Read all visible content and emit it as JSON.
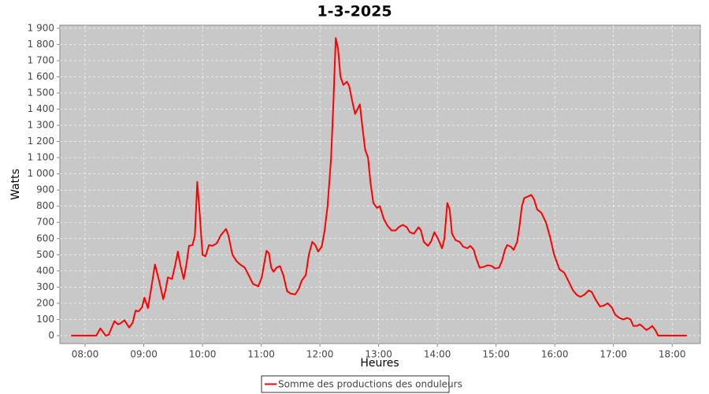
{
  "chart_data": {
    "type": "line",
    "title": "1-3-2025",
    "x_label": "Heures",
    "y_label": "Watts",
    "x": [
      7.76,
      8.13,
      8.19,
      8.26,
      8.35,
      8.4,
      8.5,
      8.56,
      8.6,
      8.67,
      8.75,
      8.81,
      8.86,
      8.91,
      8.97,
      9.01,
      9.07,
      9.13,
      9.19,
      9.26,
      9.33,
      9.37,
      9.41,
      9.48,
      9.53,
      9.58,
      9.62,
      9.68,
      9.73,
      9.77,
      9.83,
      9.87,
      9.91,
      9.95,
      10.0,
      10.05,
      10.11,
      10.17,
      10.24,
      10.31,
      10.4,
      10.44,
      10.51,
      10.58,
      10.64,
      10.72,
      10.79,
      10.86,
      10.95,
      11.01,
      11.09,
      11.13,
      11.17,
      11.21,
      11.26,
      11.32,
      11.38,
      11.44,
      11.5,
      11.58,
      11.64,
      11.69,
      11.76,
      11.81,
      11.87,
      11.92,
      11.97,
      12.03,
      12.08,
      12.13,
      12.19,
      12.23,
      12.27,
      12.31,
      12.35,
      12.4,
      12.46,
      12.5,
      12.55,
      12.6,
      12.64,
      12.68,
      12.72,
      12.77,
      12.82,
      12.86,
      12.91,
      12.97,
      13.02,
      13.09,
      13.15,
      13.22,
      13.29,
      13.34,
      13.41,
      13.48,
      13.53,
      13.6,
      13.68,
      13.72,
      13.77,
      13.84,
      13.89,
      13.95,
      14.01,
      14.08,
      14.12,
      14.17,
      14.21,
      14.25,
      14.31,
      14.38,
      14.44,
      14.51,
      14.56,
      14.62,
      14.66,
      14.72,
      14.79,
      14.86,
      14.93,
      14.98,
      15.05,
      15.1,
      15.15,
      15.19,
      15.25,
      15.3,
      15.36,
      15.4,
      15.44,
      15.48,
      15.54,
      15.6,
      15.65,
      15.7,
      15.77,
      15.85,
      15.92,
      15.99,
      16.08,
      16.16,
      16.23,
      16.31,
      16.38,
      16.44,
      16.51,
      16.58,
      16.63,
      16.7,
      16.77,
      16.83,
      16.9,
      16.97,
      17.03,
      17.1,
      17.17,
      17.23,
      17.29,
      17.34,
      17.4,
      17.45,
      17.5,
      17.56,
      17.61,
      17.66,
      17.72,
      17.76,
      17.83,
      18.25
    ],
    "series": [
      {
        "name": "Somme des productions des onduleurs",
        "color": "#ff0000",
        "values": [
          0,
          0,
          0,
          45,
          0,
          5,
          90,
          70,
          75,
          95,
          50,
          80,
          155,
          150,
          175,
          235,
          170,
          300,
          440,
          340,
          225,
          280,
          360,
          350,
          430,
          520,
          440,
          350,
          450,
          555,
          560,
          620,
          950,
          760,
          500,
          490,
          560,
          555,
          570,
          620,
          660,
          620,
          500,
          460,
          440,
          420,
          370,
          320,
          305,
          360,
          525,
          510,
          420,
          395,
          420,
          430,
          370,
          275,
          260,
          255,
          290,
          340,
          375,
          500,
          580,
          560,
          520,
          550,
          650,
          800,
          1100,
          1450,
          1840,
          1770,
          1600,
          1550,
          1570,
          1540,
          1450,
          1370,
          1400,
          1430,
          1300,
          1150,
          1100,
          950,
          820,
          790,
          800,
          720,
          680,
          650,
          650,
          670,
          685,
          670,
          640,
          630,
          670,
          650,
          580,
          555,
          580,
          640,
          600,
          540,
          600,
          820,
          780,
          630,
          590,
          580,
          550,
          540,
          555,
          530,
          480,
          420,
          425,
          435,
          430,
          415,
          420,
          460,
          530,
          560,
          550,
          530,
          580,
          680,
          800,
          850,
          860,
          870,
          840,
          780,
          760,
          700,
          610,
          500,
          410,
          390,
          340,
          280,
          250,
          240,
          255,
          280,
          270,
          220,
          180,
          185,
          200,
          175,
          130,
          110,
          100,
          110,
          100,
          60,
          60,
          70,
          55,
          35,
          45,
          60,
          30,
          0,
          0,
          0
        ]
      }
    ],
    "xlim": [
      7.57,
      18.48
    ],
    "xticks": [
      {
        "value": 8,
        "label": "08:00"
      },
      {
        "value": 9,
        "label": "09:00"
      },
      {
        "value": 10,
        "label": "10:00"
      },
      {
        "value": 11,
        "label": "11:00"
      },
      {
        "value": 12,
        "label": "12:00"
      },
      {
        "value": 13,
        "label": "13:00"
      },
      {
        "value": 14,
        "label": "14:00"
      },
      {
        "value": 15,
        "label": "15:00"
      },
      {
        "value": 16,
        "label": "16:00"
      },
      {
        "value": 17,
        "label": "17:00"
      },
      {
        "value": 18,
        "label": "18:00"
      }
    ],
    "ylim": [
      -49,
      1919
    ],
    "yticks": [
      0,
      100,
      200,
      300,
      400,
      500,
      600,
      700,
      800,
      900,
      {
        "value": 1000,
        "label": "1 000"
      },
      {
        "value": 1100,
        "label": "1 100"
      },
      {
        "value": 1200,
        "label": "1 200"
      },
      {
        "value": 1300,
        "label": "1 300"
      },
      {
        "value": 1400,
        "label": "1 400"
      },
      {
        "value": 1500,
        "label": "1 500"
      },
      {
        "value": 1600,
        "label": "1 600"
      },
      {
        "value": 1700,
        "label": "1 700"
      },
      {
        "value": 1800,
        "label": "1 800"
      },
      {
        "value": 1900,
        "label": "1 900"
      }
    ],
    "grid": true,
    "legend": "bottom"
  }
}
